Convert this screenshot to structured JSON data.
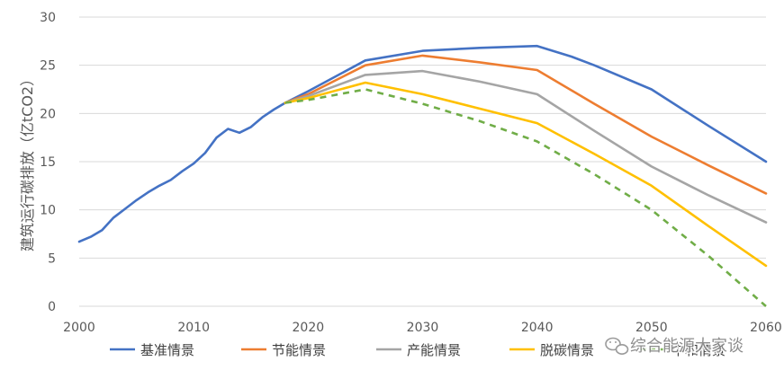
{
  "chart_data": {
    "type": "line",
    "title": "",
    "xlabel": "",
    "ylabel": "建筑运行碳排放（亿tCO2）",
    "xlim": [
      2000,
      2060
    ],
    "ylim": [
      0,
      30
    ],
    "x_ticks": [
      "2000",
      "2010",
      "2020",
      "2030",
      "2040",
      "2050",
      "2060"
    ],
    "y_ticks": [
      "0",
      "5",
      "10",
      "15",
      "20",
      "25",
      "30"
    ],
    "grid": "horizontal",
    "legend_position": "bottom",
    "series": [
      {
        "name": "基准情景",
        "color": "#4472c4",
        "dash": "solid",
        "points": [
          [
            2000,
            6.7
          ],
          [
            2001,
            7.2
          ],
          [
            2002,
            7.9
          ],
          [
            2003,
            9.2
          ],
          [
            2004,
            10.1
          ],
          [
            2005,
            11.0
          ],
          [
            2006,
            11.8
          ],
          [
            2007,
            12.5
          ],
          [
            2008,
            13.1
          ],
          [
            2009,
            14.0
          ],
          [
            2010,
            14.8
          ],
          [
            2011,
            15.9
          ],
          [
            2012,
            17.5
          ],
          [
            2013,
            18.4
          ],
          [
            2014,
            18.0
          ],
          [
            2015,
            18.6
          ],
          [
            2016,
            19.6
          ],
          [
            2017,
            20.4
          ],
          [
            2018,
            21.1
          ],
          [
            2020,
            22.3
          ],
          [
            2025,
            25.5
          ],
          [
            2030,
            26.5
          ],
          [
            2035,
            26.8
          ],
          [
            2040,
            27.0
          ],
          [
            2043,
            25.9
          ],
          [
            2045,
            25.0
          ],
          [
            2050,
            22.5
          ],
          [
            2055,
            18.7
          ],
          [
            2060,
            15.0
          ]
        ]
      },
      {
        "name": "节能情景",
        "color": "#ed7d31",
        "dash": "solid",
        "points": [
          [
            2018,
            21.1
          ],
          [
            2020,
            22.0
          ],
          [
            2025,
            25.0
          ],
          [
            2030,
            26.0
          ],
          [
            2035,
            25.3
          ],
          [
            2040,
            24.5
          ],
          [
            2045,
            21.0
          ],
          [
            2050,
            17.6
          ],
          [
            2055,
            14.6
          ],
          [
            2060,
            11.7
          ]
        ]
      },
      {
        "name": "产能情景",
        "color": "#a5a5a5",
        "dash": "solid",
        "points": [
          [
            2018,
            21.1
          ],
          [
            2020,
            21.8
          ],
          [
            2025,
            24.0
          ],
          [
            2030,
            24.4
          ],
          [
            2035,
            23.3
          ],
          [
            2040,
            22.0
          ],
          [
            2045,
            18.2
          ],
          [
            2050,
            14.5
          ],
          [
            2055,
            11.5
          ],
          [
            2060,
            8.7
          ]
        ]
      },
      {
        "name": "脱碳情景",
        "color": "#ffc000",
        "dash": "solid",
        "points": [
          [
            2018,
            21.1
          ],
          [
            2020,
            21.6
          ],
          [
            2025,
            23.2
          ],
          [
            2030,
            22.0
          ],
          [
            2035,
            20.5
          ],
          [
            2040,
            19.0
          ],
          [
            2045,
            15.8
          ],
          [
            2050,
            12.5
          ],
          [
            2055,
            8.3
          ],
          [
            2060,
            4.2
          ]
        ]
      },
      {
        "name": "中和情景",
        "color": "#70ad47",
        "dash": "dashed",
        "points": [
          [
            2018,
            21.1
          ],
          [
            2020,
            21.4
          ],
          [
            2025,
            22.5
          ],
          [
            2030,
            21.0
          ],
          [
            2035,
            19.2
          ],
          [
            2040,
            17.1
          ],
          [
            2045,
            13.7
          ],
          [
            2050,
            10.0
          ],
          [
            2055,
            5.2
          ],
          [
            2060,
            0.0
          ]
        ]
      }
    ]
  },
  "watermark": {
    "text": "综合能源大家谈",
    "icon": "wechat-icon"
  }
}
